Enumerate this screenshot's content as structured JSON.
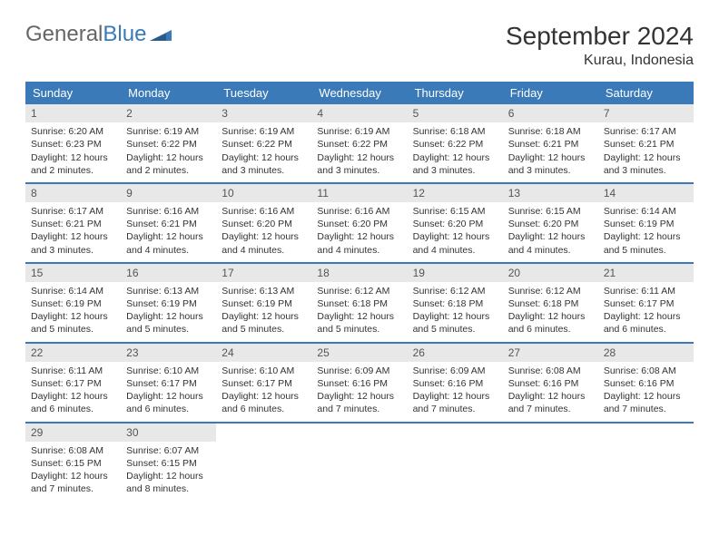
{
  "logo": {
    "general": "General",
    "blue": "Blue"
  },
  "title": "September 2024",
  "location": "Kurau, Indonesia",
  "colors": {
    "header_bg": "#3a7ab8",
    "header_text": "#ffffff",
    "daynum_bg": "#e8e8e8",
    "text": "#333333",
    "logo_gray": "#666666",
    "logo_blue": "#3a7ab8"
  },
  "daysOfWeek": [
    "Sunday",
    "Monday",
    "Tuesday",
    "Wednesday",
    "Thursday",
    "Friday",
    "Saturday"
  ],
  "weeks": [
    [
      {
        "n": "1",
        "sunrise": "Sunrise: 6:20 AM",
        "sunset": "Sunset: 6:23 PM",
        "day1": "Daylight: 12 hours",
        "day2": "and 2 minutes."
      },
      {
        "n": "2",
        "sunrise": "Sunrise: 6:19 AM",
        "sunset": "Sunset: 6:22 PM",
        "day1": "Daylight: 12 hours",
        "day2": "and 2 minutes."
      },
      {
        "n": "3",
        "sunrise": "Sunrise: 6:19 AM",
        "sunset": "Sunset: 6:22 PM",
        "day1": "Daylight: 12 hours",
        "day2": "and 3 minutes."
      },
      {
        "n": "4",
        "sunrise": "Sunrise: 6:19 AM",
        "sunset": "Sunset: 6:22 PM",
        "day1": "Daylight: 12 hours",
        "day2": "and 3 minutes."
      },
      {
        "n": "5",
        "sunrise": "Sunrise: 6:18 AM",
        "sunset": "Sunset: 6:22 PM",
        "day1": "Daylight: 12 hours",
        "day2": "and 3 minutes."
      },
      {
        "n": "6",
        "sunrise": "Sunrise: 6:18 AM",
        "sunset": "Sunset: 6:21 PM",
        "day1": "Daylight: 12 hours",
        "day2": "and 3 minutes."
      },
      {
        "n": "7",
        "sunrise": "Sunrise: 6:17 AM",
        "sunset": "Sunset: 6:21 PM",
        "day1": "Daylight: 12 hours",
        "day2": "and 3 minutes."
      }
    ],
    [
      {
        "n": "8",
        "sunrise": "Sunrise: 6:17 AM",
        "sunset": "Sunset: 6:21 PM",
        "day1": "Daylight: 12 hours",
        "day2": "and 3 minutes."
      },
      {
        "n": "9",
        "sunrise": "Sunrise: 6:16 AM",
        "sunset": "Sunset: 6:21 PM",
        "day1": "Daylight: 12 hours",
        "day2": "and 4 minutes."
      },
      {
        "n": "10",
        "sunrise": "Sunrise: 6:16 AM",
        "sunset": "Sunset: 6:20 PM",
        "day1": "Daylight: 12 hours",
        "day2": "and 4 minutes."
      },
      {
        "n": "11",
        "sunrise": "Sunrise: 6:16 AM",
        "sunset": "Sunset: 6:20 PM",
        "day1": "Daylight: 12 hours",
        "day2": "and 4 minutes."
      },
      {
        "n": "12",
        "sunrise": "Sunrise: 6:15 AM",
        "sunset": "Sunset: 6:20 PM",
        "day1": "Daylight: 12 hours",
        "day2": "and 4 minutes."
      },
      {
        "n": "13",
        "sunrise": "Sunrise: 6:15 AM",
        "sunset": "Sunset: 6:20 PM",
        "day1": "Daylight: 12 hours",
        "day2": "and 4 minutes."
      },
      {
        "n": "14",
        "sunrise": "Sunrise: 6:14 AM",
        "sunset": "Sunset: 6:19 PM",
        "day1": "Daylight: 12 hours",
        "day2": "and 5 minutes."
      }
    ],
    [
      {
        "n": "15",
        "sunrise": "Sunrise: 6:14 AM",
        "sunset": "Sunset: 6:19 PM",
        "day1": "Daylight: 12 hours",
        "day2": "and 5 minutes."
      },
      {
        "n": "16",
        "sunrise": "Sunrise: 6:13 AM",
        "sunset": "Sunset: 6:19 PM",
        "day1": "Daylight: 12 hours",
        "day2": "and 5 minutes."
      },
      {
        "n": "17",
        "sunrise": "Sunrise: 6:13 AM",
        "sunset": "Sunset: 6:19 PM",
        "day1": "Daylight: 12 hours",
        "day2": "and 5 minutes."
      },
      {
        "n": "18",
        "sunrise": "Sunrise: 6:12 AM",
        "sunset": "Sunset: 6:18 PM",
        "day1": "Daylight: 12 hours",
        "day2": "and 5 minutes."
      },
      {
        "n": "19",
        "sunrise": "Sunrise: 6:12 AM",
        "sunset": "Sunset: 6:18 PM",
        "day1": "Daylight: 12 hours",
        "day2": "and 5 minutes."
      },
      {
        "n": "20",
        "sunrise": "Sunrise: 6:12 AM",
        "sunset": "Sunset: 6:18 PM",
        "day1": "Daylight: 12 hours",
        "day2": "and 6 minutes."
      },
      {
        "n": "21",
        "sunrise": "Sunrise: 6:11 AM",
        "sunset": "Sunset: 6:17 PM",
        "day1": "Daylight: 12 hours",
        "day2": "and 6 minutes."
      }
    ],
    [
      {
        "n": "22",
        "sunrise": "Sunrise: 6:11 AM",
        "sunset": "Sunset: 6:17 PM",
        "day1": "Daylight: 12 hours",
        "day2": "and 6 minutes."
      },
      {
        "n": "23",
        "sunrise": "Sunrise: 6:10 AM",
        "sunset": "Sunset: 6:17 PM",
        "day1": "Daylight: 12 hours",
        "day2": "and 6 minutes."
      },
      {
        "n": "24",
        "sunrise": "Sunrise: 6:10 AM",
        "sunset": "Sunset: 6:17 PM",
        "day1": "Daylight: 12 hours",
        "day2": "and 6 minutes."
      },
      {
        "n": "25",
        "sunrise": "Sunrise: 6:09 AM",
        "sunset": "Sunset: 6:16 PM",
        "day1": "Daylight: 12 hours",
        "day2": "and 7 minutes."
      },
      {
        "n": "26",
        "sunrise": "Sunrise: 6:09 AM",
        "sunset": "Sunset: 6:16 PM",
        "day1": "Daylight: 12 hours",
        "day2": "and 7 minutes."
      },
      {
        "n": "27",
        "sunrise": "Sunrise: 6:08 AM",
        "sunset": "Sunset: 6:16 PM",
        "day1": "Daylight: 12 hours",
        "day2": "and 7 minutes."
      },
      {
        "n": "28",
        "sunrise": "Sunrise: 6:08 AM",
        "sunset": "Sunset: 6:16 PM",
        "day1": "Daylight: 12 hours",
        "day2": "and 7 minutes."
      }
    ],
    [
      {
        "n": "29",
        "sunrise": "Sunrise: 6:08 AM",
        "sunset": "Sunset: 6:15 PM",
        "day1": "Daylight: 12 hours",
        "day2": "and 7 minutes."
      },
      {
        "n": "30",
        "sunrise": "Sunrise: 6:07 AM",
        "sunset": "Sunset: 6:15 PM",
        "day1": "Daylight: 12 hours",
        "day2": "and 8 minutes."
      },
      null,
      null,
      null,
      null,
      null
    ]
  ]
}
